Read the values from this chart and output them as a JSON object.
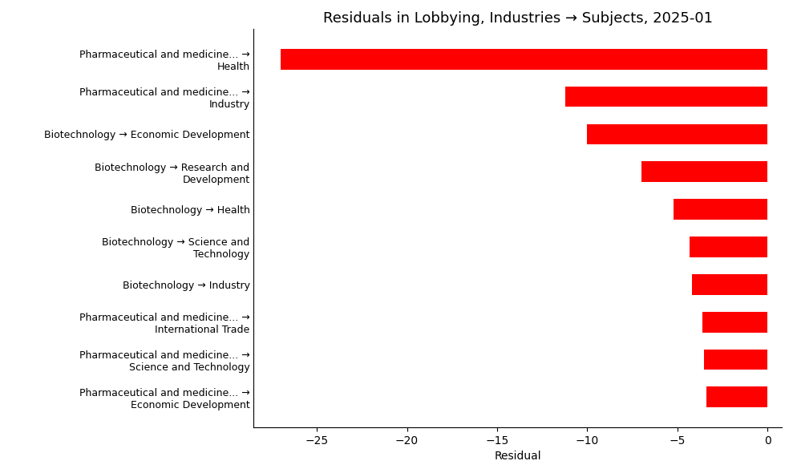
{
  "title": "Residuals in Lobbying, Industries → Subjects, 2025-01",
  "xlabel": "Residual",
  "labels": [
    "Pharmaceutical and medicine... →\nHealth",
    "Pharmaceutical and medicine... →\nIndustry",
    "Biotechnology → Economic Development",
    "Biotechnology → Research and\nDevelopment",
    "Biotechnology → Health",
    "Biotechnology → Science and\nTechnology",
    "Biotechnology → Industry",
    "Pharmaceutical and medicine... →\nInternational Trade",
    "Pharmaceutical and medicine... →\nScience and Technology",
    "Pharmaceutical and medicine... →\nEconomic Development"
  ],
  "values": [
    -27.0,
    -11.2,
    -10.0,
    -7.0,
    -5.2,
    -4.3,
    -4.2,
    -3.6,
    -3.5,
    -3.4
  ],
  "bar_color": "#ff0000",
  "xlim": [
    -28.5,
    0.8
  ],
  "xticks": [
    -25,
    -20,
    -15,
    -10,
    -5,
    0
  ],
  "background_color": "#ffffff",
  "title_fontsize": 13,
  "label_fontsize": 9,
  "tick_fontsize": 10,
  "bar_height": 0.55
}
